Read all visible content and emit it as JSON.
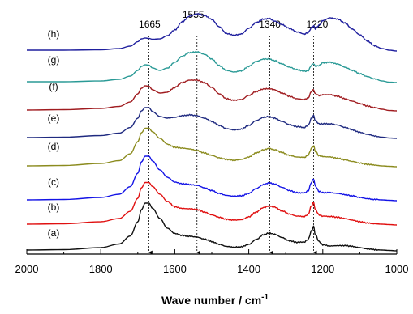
{
  "chart_data": {
    "type": "line",
    "xlabel": "Wave number / cm",
    "xlabel_sup": "-1",
    "ylabel": "",
    "xlim": [
      2000,
      1000
    ],
    "x_reversed": true,
    "xticks": [
      "2000",
      "1800",
      "1600",
      "1400",
      "1200",
      "1000"
    ],
    "y_axis_visible": false,
    "grid": false,
    "peak_markers": [
      {
        "label": "1665",
        "x": 1670
      },
      {
        "label": "1555",
        "x": 1540
      },
      {
        "label": "1340",
        "x": 1343
      },
      {
        "label": "1220",
        "x": 1225
      }
    ],
    "x": [
      2000,
      1900,
      1800,
      1750,
      1720,
      1700,
      1690,
      1680,
      1670,
      1660,
      1640,
      1620,
      1600,
      1580,
      1560,
      1540,
      1520,
      1500,
      1480,
      1460,
      1440,
      1420,
      1400,
      1380,
      1360,
      1345,
      1330,
      1310,
      1290,
      1270,
      1250,
      1240,
      1230,
      1225,
      1220,
      1210,
      1200,
      1180,
      1160,
      1140,
      1120,
      1100,
      1080,
      1060,
      1040,
      1020,
      1000
    ],
    "series": [
      {
        "name": "(h)",
        "color": "#1f1f9e",
        "values": [
          0.02,
          0.02,
          0.03,
          0.06,
          0.12,
          0.23,
          0.3,
          0.32,
          0.31,
          0.29,
          0.3,
          0.38,
          0.52,
          0.72,
          0.86,
          0.92,
          0.88,
          0.78,
          0.6,
          0.43,
          0.39,
          0.42,
          0.56,
          0.7,
          0.79,
          0.8,
          0.74,
          0.65,
          0.56,
          0.47,
          0.42,
          0.45,
          0.58,
          0.62,
          0.55,
          0.64,
          0.75,
          0.82,
          0.79,
          0.69,
          0.54,
          0.4,
          0.25,
          0.13,
          0.06,
          0.02,
          0.0
        ]
      },
      {
        "name": "(g)",
        "color": "#2a9a96",
        "values": [
          0.02,
          0.02,
          0.04,
          0.08,
          0.16,
          0.3,
          0.4,
          0.44,
          0.43,
          0.36,
          0.3,
          0.36,
          0.5,
          0.65,
          0.74,
          0.76,
          0.7,
          0.58,
          0.42,
          0.3,
          0.26,
          0.29,
          0.4,
          0.52,
          0.58,
          0.58,
          0.54,
          0.46,
          0.38,
          0.32,
          0.28,
          0.29,
          0.43,
          0.47,
          0.4,
          0.42,
          0.49,
          0.5,
          0.46,
          0.38,
          0.3,
          0.22,
          0.15,
          0.09,
          0.04,
          0.01,
          0.0
        ]
      },
      {
        "name": "(f)",
        "color": "#a01c20",
        "values": [
          0.02,
          0.03,
          0.06,
          0.11,
          0.22,
          0.42,
          0.56,
          0.62,
          0.61,
          0.52,
          0.44,
          0.46,
          0.58,
          0.7,
          0.76,
          0.76,
          0.7,
          0.58,
          0.42,
          0.3,
          0.26,
          0.28,
          0.38,
          0.48,
          0.54,
          0.55,
          0.52,
          0.44,
          0.36,
          0.3,
          0.28,
          0.32,
          0.48,
          0.52,
          0.42,
          0.38,
          0.4,
          0.4,
          0.36,
          0.3,
          0.24,
          0.18,
          0.12,
          0.08,
          0.04,
          0.01,
          0.0
        ]
      },
      {
        "name": "(e)",
        "color": "#1f2a80",
        "values": [
          0.02,
          0.03,
          0.07,
          0.13,
          0.27,
          0.5,
          0.68,
          0.76,
          0.76,
          0.66,
          0.54,
          0.5,
          0.52,
          0.56,
          0.58,
          0.56,
          0.5,
          0.42,
          0.32,
          0.24,
          0.21,
          0.23,
          0.32,
          0.44,
          0.52,
          0.54,
          0.5,
          0.42,
          0.34,
          0.29,
          0.27,
          0.32,
          0.5,
          0.56,
          0.44,
          0.36,
          0.36,
          0.36,
          0.33,
          0.27,
          0.21,
          0.15,
          0.1,
          0.06,
          0.03,
          0.01,
          0.0
        ]
      },
      {
        "name": "(d)",
        "color": "#8b8b1e",
        "values": [
          0.02,
          0.03,
          0.08,
          0.15,
          0.32,
          0.62,
          0.84,
          0.95,
          0.95,
          0.86,
          0.7,
          0.56,
          0.48,
          0.46,
          0.44,
          0.4,
          0.34,
          0.28,
          0.22,
          0.18,
          0.16,
          0.18,
          0.24,
          0.34,
          0.42,
          0.45,
          0.42,
          0.35,
          0.28,
          0.24,
          0.23,
          0.28,
          0.46,
          0.52,
          0.38,
          0.27,
          0.25,
          0.24,
          0.21,
          0.17,
          0.13,
          0.09,
          0.06,
          0.04,
          0.02,
          0.01,
          0.0
        ]
      },
      {
        "name": "(c)",
        "color": "#1414e6",
        "values": [
          0.02,
          0.03,
          0.08,
          0.16,
          0.35,
          0.68,
          0.96,
          1.1,
          1.1,
          0.98,
          0.76,
          0.58,
          0.46,
          0.42,
          0.4,
          0.38,
          0.32,
          0.25,
          0.18,
          0.13,
          0.11,
          0.12,
          0.18,
          0.3,
          0.4,
          0.44,
          0.41,
          0.33,
          0.25,
          0.2,
          0.19,
          0.24,
          0.46,
          0.54,
          0.36,
          0.23,
          0.2,
          0.2,
          0.18,
          0.15,
          0.12,
          0.08,
          0.05,
          0.03,
          0.02,
          0.01,
          0.0
        ]
      },
      {
        "name": "(b)",
        "color": "#e01010",
        "values": [
          0.02,
          0.03,
          0.08,
          0.16,
          0.34,
          0.66,
          0.92,
          1.05,
          1.05,
          0.95,
          0.76,
          0.58,
          0.45,
          0.41,
          0.4,
          0.38,
          0.32,
          0.25,
          0.19,
          0.14,
          0.12,
          0.13,
          0.2,
          0.32,
          0.43,
          0.47,
          0.44,
          0.35,
          0.27,
          0.22,
          0.21,
          0.26,
          0.48,
          0.56,
          0.38,
          0.25,
          0.22,
          0.21,
          0.19,
          0.16,
          0.12,
          0.08,
          0.05,
          0.03,
          0.02,
          0.01,
          0.0
        ]
      },
      {
        "name": "(a)",
        "color": "#111111",
        "values": [
          0.02,
          0.03,
          0.08,
          0.17,
          0.37,
          0.72,
          1.02,
          1.18,
          1.18,
          1.05,
          0.8,
          0.56,
          0.43,
          0.38,
          0.36,
          0.34,
          0.29,
          0.23,
          0.16,
          0.11,
          0.09,
          0.1,
          0.16,
          0.28,
          0.4,
          0.44,
          0.41,
          0.33,
          0.25,
          0.21,
          0.22,
          0.28,
          0.5,
          0.6,
          0.4,
          0.23,
          0.15,
          0.12,
          0.13,
          0.13,
          0.11,
          0.08,
          0.05,
          0.03,
          0.02,
          0.01,
          0.0
        ]
      }
    ]
  }
}
